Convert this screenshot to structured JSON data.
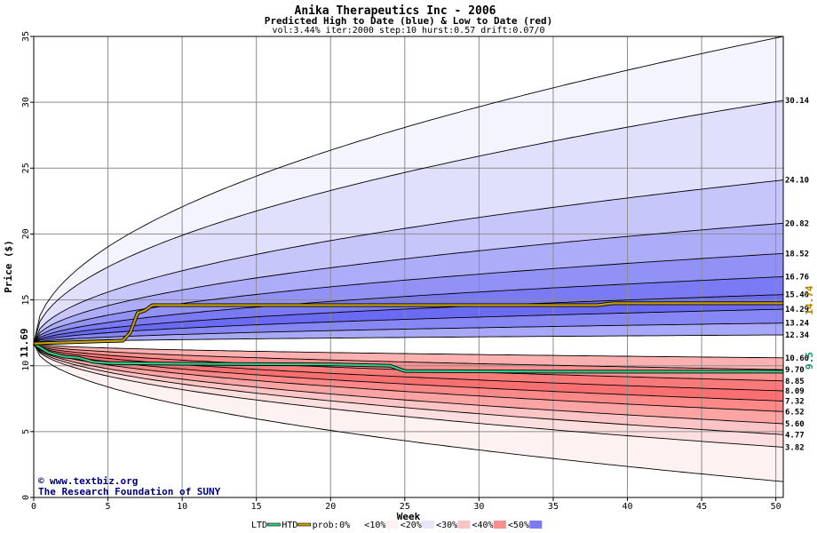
{
  "chart_data": {
    "type": "area",
    "title": "Anika Therapeutics Inc - 2006",
    "subtitle": "Predicted High to Date (blue) &  Low to Date (red)",
    "params": "vol:3.44% iter:2000 step:10 hurst:0.57 drift:0.07/0",
    "xlabel": "Week",
    "ylabel": "Price ($)",
    "xlim": [
      0,
      50.5
    ],
    "ylim": [
      0,
      35
    ],
    "x_ticks": [
      0,
      5,
      10,
      15,
      20,
      25,
      30,
      35,
      40,
      45,
      50
    ],
    "y_ticks": [
      0,
      5,
      10,
      15,
      20,
      25,
      30,
      35
    ],
    "grid": true,
    "start_price": 11.69,
    "start_label": "11.69",
    "high_percentile_curves": [
      {
        "end_value": 35,
        "end_label": ""
      },
      {
        "end_value": 30.14,
        "end_label": "30.14"
      },
      {
        "end_value": 24.1,
        "end_label": "24.10"
      },
      {
        "end_value": 20.82,
        "end_label": "20.82"
      },
      {
        "end_value": 18.52,
        "end_label": "18.52"
      },
      {
        "end_value": 16.76,
        "end_label": "16.76"
      },
      {
        "end_value": 15.4,
        "end_label": "15.40"
      },
      {
        "end_value": 14.29,
        "end_label": "14.29"
      },
      {
        "end_value": 13.24,
        "end_label": "13.24"
      },
      {
        "end_value": 12.34,
        "end_label": "12.34"
      }
    ],
    "low_percentile_curves": [
      {
        "end_value": 10.6,
        "end_label": "10.60"
      },
      {
        "end_value": 9.7,
        "end_label": "9.70"
      },
      {
        "end_value": 8.85,
        "end_label": "8.85"
      },
      {
        "end_value": 8.09,
        "end_label": "8.09"
      },
      {
        "end_value": 7.32,
        "end_label": "7.32"
      },
      {
        "end_value": 6.52,
        "end_label": "6.52"
      },
      {
        "end_value": 5.6,
        "end_label": "5.60"
      },
      {
        "end_value": 4.77,
        "end_label": "4.77"
      },
      {
        "end_value": 3.82,
        "end_label": "3.82"
      },
      {
        "end_value": 1.2,
        "end_label": ""
      }
    ],
    "ltd_series": {
      "name": "LTD",
      "end_label": "9.5",
      "points": [
        [
          0,
          11.69
        ],
        [
          1,
          11.0
        ],
        [
          2,
          10.7
        ],
        [
          3,
          10.6
        ],
        [
          4,
          10.3
        ],
        [
          5,
          10.2
        ],
        [
          10,
          10.15
        ],
        [
          20,
          10.1
        ],
        [
          24,
          10.0
        ],
        [
          25,
          9.6
        ],
        [
          35,
          9.55
        ],
        [
          50.5,
          9.55
        ]
      ]
    },
    "htd_series": {
      "name": "HTD",
      "end_label": "14.74",
      "points": [
        [
          0,
          11.69
        ],
        [
          3,
          11.8
        ],
        [
          6,
          11.9
        ],
        [
          6.5,
          12.5
        ],
        [
          7,
          14.0
        ],
        [
          7.5,
          14.2
        ],
        [
          8,
          14.6
        ],
        [
          20,
          14.6
        ],
        [
          38,
          14.6
        ],
        [
          39,
          14.74
        ],
        [
          50.5,
          14.74
        ]
      ]
    },
    "legend": {
      "ltd": "LTD",
      "htd": "HTD",
      "prob_label": "prob:",
      "items": [
        "0%",
        "<10%",
        "<20%",
        "<30%",
        "<40%",
        "<50%"
      ]
    },
    "credit_url": "www.textbiz.org",
    "credit_org": "The Research Foundation of SUNY",
    "colors": {
      "ltd": "#33cc88",
      "htd": "#c8a000",
      "blue_bands": [
        "#f4f4ff",
        "#e0e0fc",
        "#c6c6fa",
        "#acacf8",
        "#9292f6",
        "#7a7af4",
        "#6a6af2",
        "#8686f4",
        "#a8a8f8"
      ],
      "red_bands": [
        "#fcb0b0",
        "#fa9090",
        "#fa7a7a",
        "#fa7070",
        "#fc8888",
        "#fca4a4",
        "#fcc4c4",
        "#fddede",
        "#fef1f1"
      ],
      "legend_swatches": [
        "#ffffff",
        "#fef1f1",
        "#e6e6fc",
        "#f8c4c4",
        "#f89090",
        "#7a7af4"
      ]
    }
  }
}
